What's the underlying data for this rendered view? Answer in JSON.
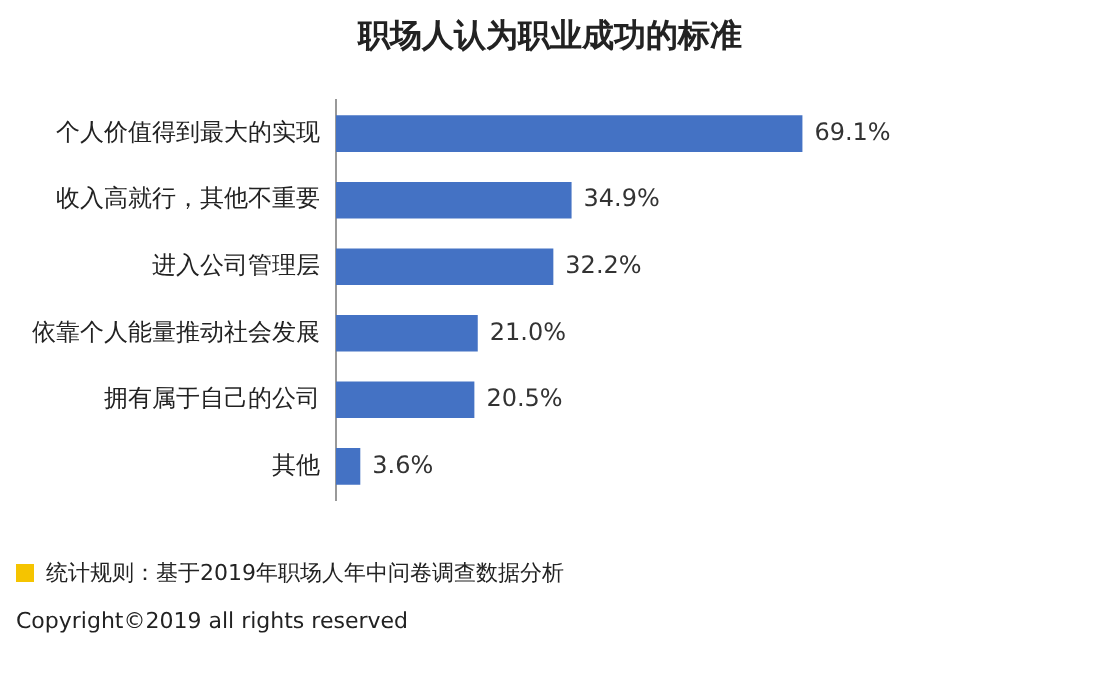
{
  "chart_data": {
    "type": "bar",
    "orientation": "horizontal",
    "title": "职场人认为职业成功的标准",
    "categories": [
      "个人价值得到最大的实现",
      "收入高就行，其他不重要",
      "进入公司管理层",
      "依靠个人能量推动社会发展",
      "拥有属于自己的公司",
      "其他"
    ],
    "values": [
      69.1,
      34.9,
      32.2,
      21.0,
      20.5,
      3.6
    ],
    "value_labels": [
      "69.1%",
      "34.9%",
      "32.2%",
      "21.0%",
      "20.5%",
      "3.6%"
    ],
    "color": "#4472c4",
    "grid": false,
    "legend": false,
    "annotations": [
      "统计规则：基于2019年职场人年中问卷调查数据分析",
      "Copyright©2019 all rights reserved"
    ]
  }
}
